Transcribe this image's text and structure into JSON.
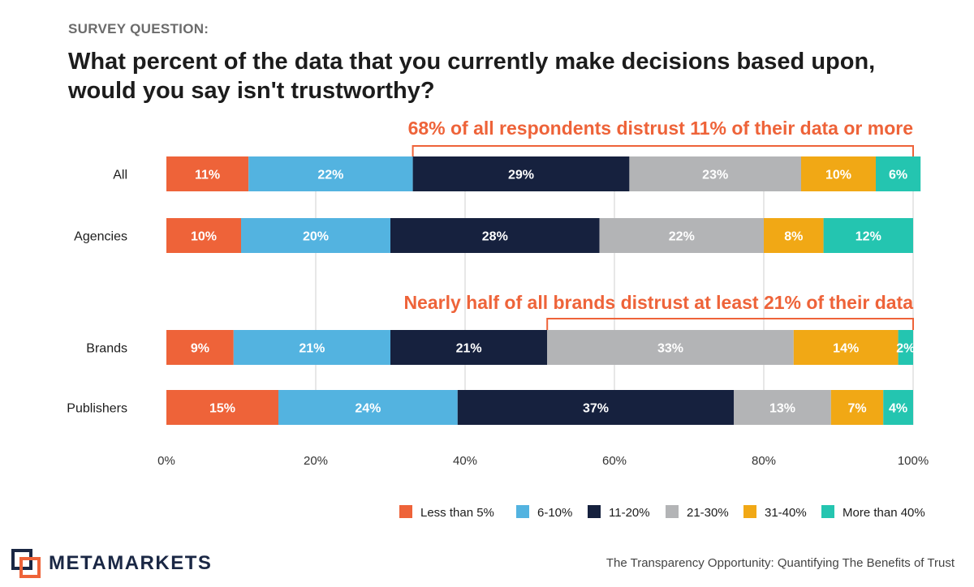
{
  "header": {
    "survey_label": "SURVEY QUESTION:",
    "question": "What percent of the data that you currently make decisions based upon, would you say isn't trustworthy?"
  },
  "chart_data": {
    "type": "bar",
    "orientation": "horizontal",
    "stacked": true,
    "title": "What percent of the data that you currently make decisions based upon, would you say isn't trustworthy?",
    "xlabel": "",
    "ylabel": "",
    "xlim": [
      0,
      100
    ],
    "x_ticks": [
      "0%",
      "20%",
      "40%",
      "60%",
      "80%",
      "100%"
    ],
    "grid": true,
    "legend_position": "bottom-right",
    "categories": [
      "All",
      "Agencies",
      "Brands",
      "Publishers"
    ],
    "series": [
      {
        "name": "Less than 5%",
        "color": "#EE6339",
        "values": [
          11,
          10,
          9,
          15
        ],
        "labels": [
          "11%",
          "10%",
          "9%",
          "15%"
        ]
      },
      {
        "name": "6-10%",
        "color": "#53B3E0",
        "values": [
          22,
          20,
          21,
          24
        ],
        "labels": [
          "22%",
          "20%",
          "21%",
          "24%"
        ]
      },
      {
        "name": "11-20%",
        "color": "#16213E",
        "values": [
          29,
          28,
          21,
          37
        ],
        "labels": [
          "29%",
          "28%",
          "21%",
          "37%"
        ]
      },
      {
        "name": "21-30%",
        "color": "#B3B4B6",
        "values": [
          23,
          22,
          33,
          13
        ],
        "labels": [
          "23%",
          "22%",
          "33%",
          "13%"
        ]
      },
      {
        "name": "31-40%",
        "color": "#F1A815",
        "values": [
          10,
          8,
          14,
          7
        ],
        "labels": [
          "10%",
          "8%",
          "14%",
          "7%"
        ]
      },
      {
        "name": "More than 40%",
        "color": "#24C5B0",
        "values": [
          6,
          12,
          2,
          4
        ],
        "labels": [
          "6%",
          "12%",
          "2%",
          "4%"
        ]
      }
    ],
    "annotations": [
      {
        "text": "68% of all respondents distrust 11% of their data or more",
        "category": "All",
        "span_start": 33,
        "span_end": 100,
        "color": "#EE6339"
      },
      {
        "text": "Nearly half of all brands distrust at least 21% of their data",
        "category": "Brands",
        "span_start": 51,
        "span_end": 100,
        "color": "#EE6339"
      }
    ]
  },
  "footer": {
    "logo_text": "METAMARKETS",
    "caption": "The Transparency Opportunity: Quantifying The Benefits of Trust"
  },
  "colors": {
    "accent": "#EE6339",
    "text_dark": "#1c1c1c",
    "brand_navy": "#1a2744"
  }
}
